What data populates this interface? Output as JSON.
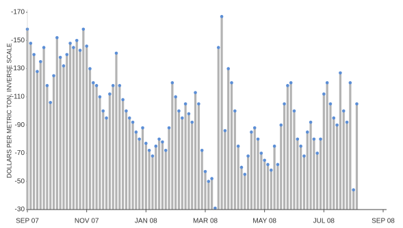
{
  "chart_data": {
    "type": "bar",
    "y_label": "DOLLARS PER METRIC TON, INVERSE SCALE",
    "categories": [
      "SEP 07",
      null,
      null,
      null,
      null,
      null,
      null,
      null,
      null,
      null,
      null,
      null,
      null,
      null,
      null,
      null,
      null,
      null,
      "NOV 07",
      null,
      null,
      null,
      null,
      null,
      null,
      null,
      null,
      null,
      null,
      null,
      null,
      null,
      null,
      null,
      null,
      null,
      "JAN 08",
      null,
      null,
      null,
      null,
      null,
      null,
      null,
      null,
      null,
      null,
      null,
      null,
      null,
      null,
      null,
      null,
      null,
      "MAR 08",
      null,
      null,
      null,
      null,
      null,
      null,
      null,
      null,
      null,
      null,
      null,
      null,
      null,
      null,
      null,
      null,
      null,
      "MAY 08",
      null,
      null,
      null,
      null,
      null,
      null,
      null,
      null,
      null,
      null,
      null,
      null,
      null,
      null,
      null,
      null,
      null,
      "JUL 08",
      null,
      null,
      null,
      null,
      null,
      null,
      null,
      null,
      null,
      null,
      null,
      null,
      null,
      null,
      null,
      null,
      null,
      "SEP 08"
    ],
    "values": [
      -158,
      -148,
      -140,
      -128,
      -135,
      -145,
      -118,
      -106,
      -125,
      -152,
      -138,
      -132,
      -140,
      -148,
      -145,
      -150,
      -143,
      -158,
      -146,
      -130,
      -120,
      -118,
      -110,
      -100,
      -95,
      -112,
      -118,
      -141,
      -118,
      -108,
      -100,
      -95,
      -92,
      -85,
      -80,
      -88,
      -77,
      -72,
      -68,
      -75,
      -80,
      -78,
      -72,
      -88,
      -120,
      -110,
      -100,
      -95,
      -105,
      -98,
      -92,
      -113,
      -105,
      -72,
      -57,
      -50,
      -52,
      -31,
      -145,
      -167,
      -86,
      -130,
      -120,
      -100,
      -75,
      -60,
      -55,
      -68,
      -85,
      -88,
      -80,
      -70,
      -65,
      -62,
      -58,
      -75,
      -62,
      -90,
      -105,
      -118,
      -120,
      -100,
      -80,
      -75,
      -68,
      -85,
      -92,
      -80,
      -70,
      -80,
      -112,
      -120,
      -105,
      -95,
      -90,
      -127,
      -100,
      -92,
      -120,
      -44,
      -105,
      null,
      null,
      null,
      null,
      null,
      null,
      null,
      null
    ],
    "color": "#b3b3b3",
    "marker_color": "#5b8ed6",
    "ylim": [
      -30,
      -170
    ],
    "yticks": [
      -170,
      -150,
      -130,
      -110,
      -90,
      -70,
      -50,
      -30
    ]
  }
}
